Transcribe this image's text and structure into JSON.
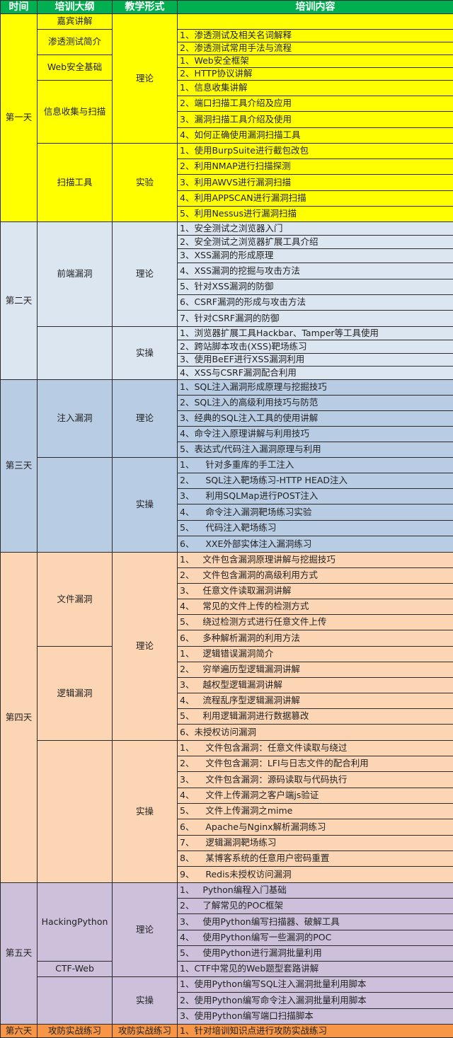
{
  "header": {
    "time": "时间",
    "outline": "培训大纲",
    "form": "教学形式",
    "content": "培训内容",
    "color": "#00b050"
  },
  "days": [
    {
      "label": "第一天",
      "color": "#ffff00",
      "forms": [
        {
          "label": "理论",
          "topics": [
            {
              "label": "嘉宾讲解",
              "items": [
                ""
              ]
            },
            {
              "label": "渗透测试简介",
              "items": [
                "1、渗透测试及相关名词解释",
                "2、渗透测试常用手法与流程"
              ]
            },
            {
              "label": "Web安全基础",
              "items": [
                "1、Web安全框架",
                "2、HTTP协议讲解"
              ]
            },
            {
              "label": "信息收集与扫描",
              "items": [
                "1、信息收集讲解",
                "2、端口扫描工具介绍及应用",
                "3、漏洞扫描工具介绍及使用",
                "4、如何正确使用漏洞扫描工具"
              ]
            }
          ]
        },
        {
          "label": "实验",
          "topics": [
            {
              "label": "扫描工具",
              "items": [
                "1、使用BurpSuite进行截包改包",
                "2、利用NMAP进行扫描探测",
                "3、利用AWVS进行漏洞扫描",
                "4、利用APPSCAN进行漏洞扫描",
                "5、利用Nessus进行漏洞扫描"
              ]
            }
          ]
        }
      ]
    },
    {
      "label": "第二天",
      "color": "#dce6f1",
      "forms": [
        {
          "label": "理论",
          "topics": [
            {
              "label": "前端漏洞",
              "items": [
                "1、安全测试之浏览器入门",
                "2、安全测试之浏览器扩展工具介绍",
                "3、XSS漏洞的形成原理",
                "4、XSS漏洞的挖掘与攻击方法",
                "5、针对XSS漏洞的防御",
                "6、CSRF漏洞的形成与攻击方法",
                "7、针对CSRF漏洞的防御"
              ]
            }
          ]
        },
        {
          "label": "实操",
          "topics": [
            {
              "label": "",
              "items": [
                "1、浏览器扩展工具Hackbar、Tamper等工具使用",
                "2、跨站脚本攻击(XSS)靶场练习",
                "3、使用BeEF进行XSS漏洞利用",
                "4、XSS与CSRF漏洞配合利用"
              ]
            }
          ]
        }
      ]
    },
    {
      "label": "第三天",
      "color": "#b8cce4",
      "forms": [
        {
          "label": "理论",
          "topics": [
            {
              "label": "注入漏洞",
              "items": [
                "1、SQL注入漏洞形成原理与挖掘技巧",
                "2、SQL注入的高级利用技巧与防范",
                "3、经典的SQL注入工具的使用讲解",
                "4、命令注入原理讲解与利用技巧",
                "5、表达式/代码注入漏洞原理与利用"
              ]
            }
          ]
        },
        {
          "label": "实操",
          "topics": [
            {
              "label": "",
              "items": [
                "1、    针对多重库的手工注入",
                "2、    SQL注入靶场练习-HTTP HEAD注入",
                "3、    利用SQLMap进行POST注入",
                "4、    命令注入漏洞靶场练习实验",
                "5、    代码注入靶场练习",
                "6、    XXE外部实体注入漏洞练习"
              ]
            }
          ]
        }
      ]
    },
    {
      "label": "第四天",
      "color": "#fcd5b4",
      "forms": [
        {
          "label": "理论",
          "topics": [
            {
              "label": "文件漏洞",
              "items": [
                "1、   文件包含漏洞原理讲解与挖掘技巧",
                "2、   文件包含漏洞的高级利用方式",
                "3、   任意文件读取漏洞讲解",
                "4、   常见的文件上传的检测方式",
                "5、   绕过检测方式进行任意文件上传",
                "6、   多种解析漏洞的利用方法"
              ]
            },
            {
              "label": "逻辑漏洞",
              "items": [
                "1、   逻辑错误漏洞简介",
                "2、   穷举遍历型逻辑漏洞讲解",
                "3、   越权型逻辑漏洞讲解",
                "4、   流程乱序型逻辑漏洞讲解",
                "5、   利用逻辑漏洞进行数据篡改",
                "6、未授权访问漏洞"
              ]
            }
          ]
        },
        {
          "label": "实操",
          "topics": [
            {
              "label": "",
              "items": [
                "1、    文件包含漏洞：任意文件读取与绕过",
                "2、    文件包含漏洞：LFI与日志文件的配合利用",
                "3、    文件包含漏洞：源码读取与代码执行",
                "4、    文件上传漏洞之客户端js验证",
                "5、    文件上传漏洞之mime",
                "6、    Apache与Nginx解析漏洞练习",
                "7、    逻辑漏洞靶场练习",
                "8、    某博客系统的任意用户密码重置",
                "9、    Redis未授权访问漏洞"
              ]
            }
          ]
        }
      ]
    },
    {
      "label": "第五天",
      "color": "#ccc0da",
      "forms": [
        {
          "label": "理论",
          "topics": [
            {
              "label": "HackingPython",
              "items": [
                "1、   Python编程入门基础",
                "2、   了解常见的POC框架",
                "3、   使用Python编写扫描器、破解工具",
                "4、   使用Python编写一些漏洞的POC",
                "5、   使用Python进行漏洞批量利用"
              ]
            },
            {
              "label": "CTF-Web",
              "items": [
                "1、CTF中常见的Web题型套路讲解"
              ]
            }
          ]
        },
        {
          "label": "实操",
          "topics": [
            {
              "label": "",
              "items": [
                "1、使用Python编写SQL注入漏洞批量利用脚本",
                "2、使用Python编写命令注入漏洞批量利用脚本",
                "3、使用Python编写端口扫描脚本"
              ]
            }
          ]
        }
      ]
    },
    {
      "label": "第六天",
      "color": "#f79646",
      "forms": [
        {
          "label": "攻防实战练习",
          "topics": [
            {
              "label": "攻防实战练习",
              "items": [
                "1、针对培训知识点进行攻防实战练习"
              ]
            }
          ]
        }
      ]
    }
  ]
}
